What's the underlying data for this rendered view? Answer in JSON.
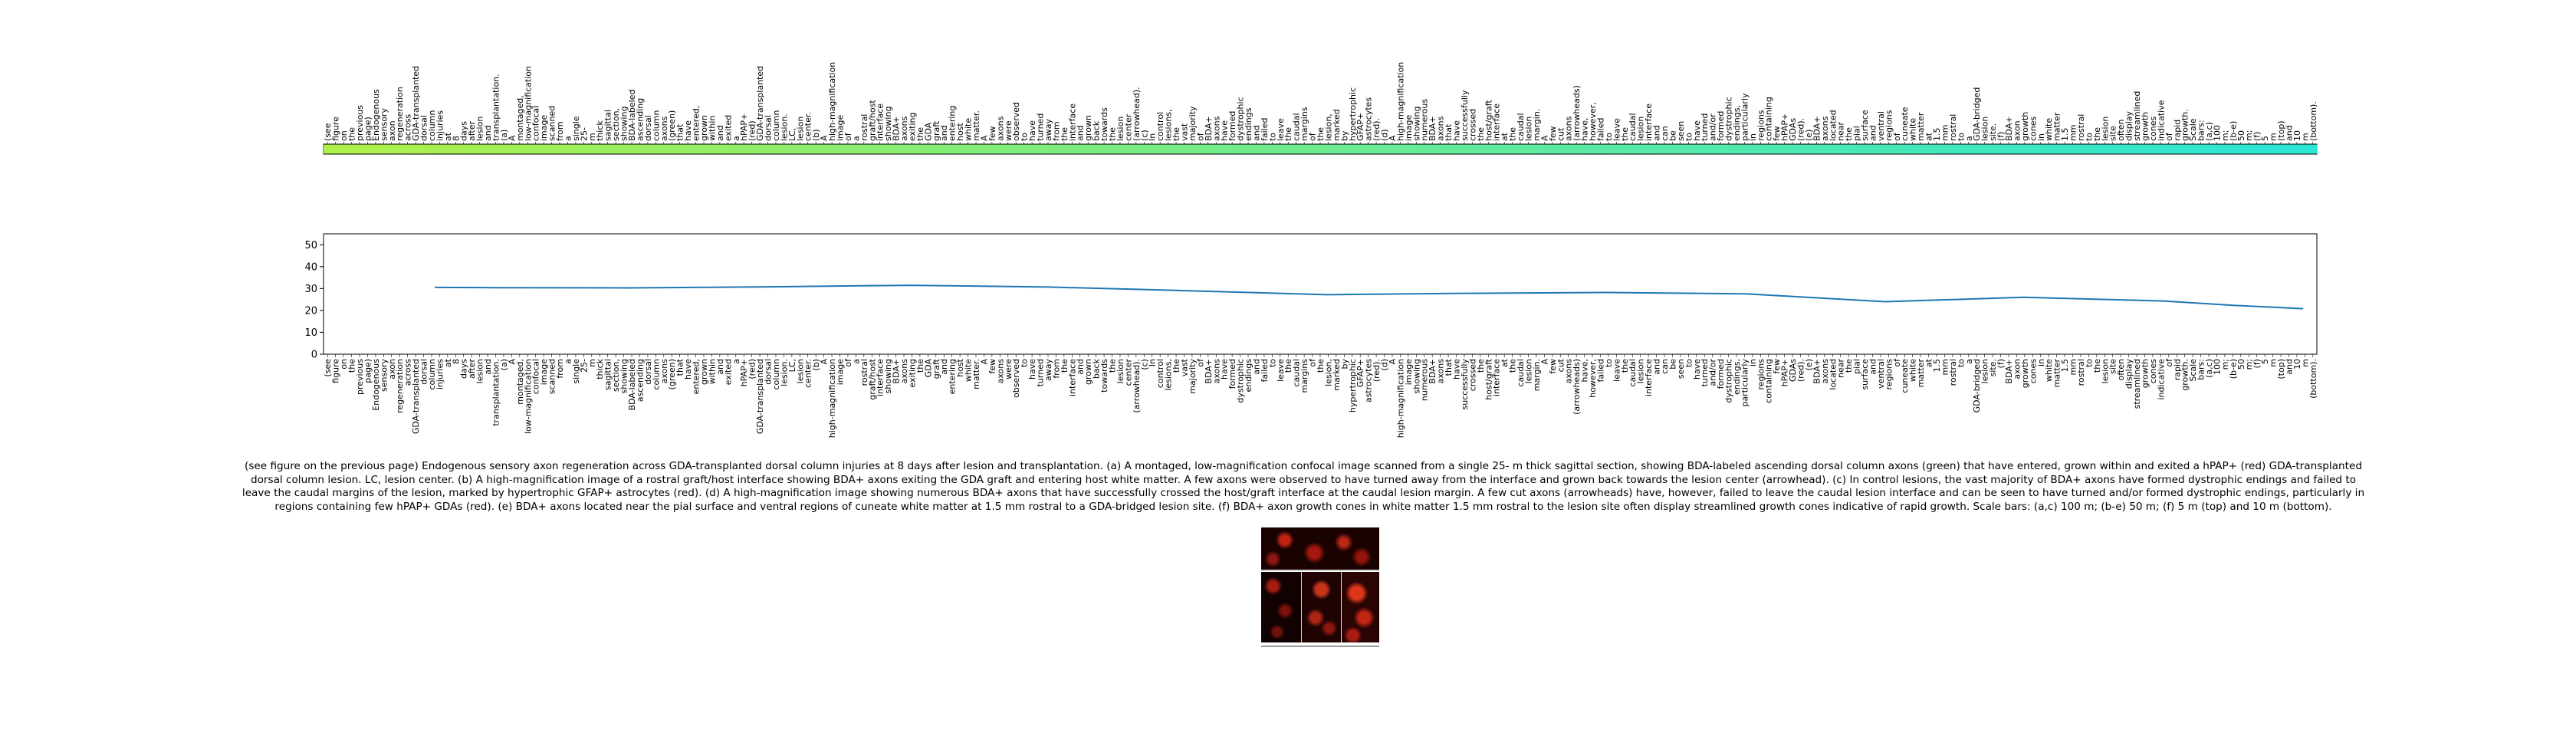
{
  "chart_data": [
    {
      "type": "heatmap",
      "xlabel": "",
      "ylabel": "",
      "colormap": "viridis",
      "color_range": [
        "#aef04a",
        "#2ae6d6"
      ],
      "gridlines": false,
      "legend": "none"
    },
    {
      "type": "line",
      "xlabel": "",
      "ylabel": "",
      "xlim": [
        0,
        143
      ],
      "ylim": [
        0,
        55
      ],
      "yticks": [
        0,
        10,
        20,
        30,
        40,
        50
      ],
      "grid": false,
      "legend": "none",
      "line_color": "#1f77b4",
      "x": [
        8,
        12,
        22,
        32,
        42,
        52,
        62,
        72,
        82,
        92,
        102,
        112,
        122,
        132,
        137,
        142
      ],
      "y": [
        30.5,
        30.4,
        30.3,
        30.8,
        31.5,
        30.7,
        29.0,
        27.2,
        27.8,
        28.2,
        27.6,
        24.0,
        26.0,
        24.3,
        22.3,
        20.8
      ]
    }
  ],
  "tokens": [
    "(see",
    "figure",
    "on",
    "the",
    "previous",
    "page)",
    "Endogenous",
    "sensory",
    "axon",
    "regeneration",
    "across",
    "GDA-transplanted",
    "dorsal",
    "column",
    "injuries",
    "at",
    "8",
    "days",
    "after",
    "lesion",
    "and",
    "transplantation.",
    "(a)",
    "A",
    "montaged,",
    "low-magnification",
    "confocal",
    "image",
    "scanned",
    "from",
    "a",
    "single",
    "25-",
    "m",
    "thick",
    "sagittal",
    "section,",
    "showing",
    "BDA-labeled",
    "ascending",
    "dorsal",
    "column",
    "axons",
    "(green)",
    "that",
    "have",
    "entered,",
    "grown",
    "within",
    "and",
    "exited",
    "a",
    "hPAP+",
    "(red)",
    "GDA-transplanted",
    "dorsal",
    "column",
    "lesion.",
    "LC,",
    "lesion",
    "center.",
    "(b)",
    "A",
    "high-magnification",
    "image",
    "of",
    "a",
    "rostral",
    "graft/host",
    "interface",
    "showing",
    "BDA+",
    "axons",
    "exiting",
    "the",
    "GDA",
    "graft",
    "and",
    "entering",
    "host",
    "white",
    "matter.",
    "A",
    "few",
    "axons",
    "were",
    "observed",
    "to",
    "have",
    "turned",
    "away",
    "from",
    "the",
    "interface",
    "and",
    "grown",
    "back",
    "towards",
    "the",
    "lesion",
    "center",
    "(arrowhead).",
    "(c)",
    "In",
    "control",
    "lesions,",
    "the",
    "vast",
    "majority",
    "of",
    "BDA+",
    "axons",
    "have",
    "formed",
    "dystrophic",
    "endings",
    "and",
    "failed",
    "to",
    "leave",
    "the",
    "caudal",
    "margins",
    "of",
    "the",
    "lesion,",
    "marked",
    "by",
    "hypertrophic",
    "GFAP+",
    "astrocytes",
    "(red).",
    "(d)",
    "A",
    "high-magnification",
    "image",
    "showing",
    "numerous",
    "BDA+",
    "axons",
    "that",
    "have",
    "successfully",
    "crossed",
    "the",
    "host/graft",
    "interface",
    "at",
    "the",
    "caudal",
    "lesion",
    "margin.",
    "A",
    "few",
    "cut",
    "axons",
    "(arrowheads)",
    "have,",
    "however,",
    "failed",
    "to",
    "leave",
    "the",
    "caudal",
    "lesion",
    "interface",
    "and",
    "can",
    "be",
    "seen",
    "to",
    "have",
    "turned",
    "and/or",
    "formed",
    "dystrophic",
    "endings,",
    "particularly",
    "in",
    "regions",
    "containing",
    "few",
    "hPAP+",
    "GDAs",
    "(red).",
    "(e)",
    "BDA+",
    "axons",
    "located",
    "near",
    "the",
    "pial",
    "surface",
    "and",
    "ventral",
    "regions",
    "of",
    "cuneate",
    "white",
    "matter",
    "at",
    "1.5",
    "mm",
    "rostral",
    "to",
    "a",
    "GDA-bridged",
    "lesion",
    "site.",
    "(f)",
    "BDA+",
    "axon",
    "growth",
    "cones",
    "in",
    "white",
    "matter",
    "1.5",
    "mm",
    "rostral",
    "to",
    "the",
    "lesion",
    "site",
    "often",
    "display",
    "streamlined",
    "growth",
    "cones",
    "indicative",
    "of",
    "rapid",
    "growth.",
    "Scale",
    "bars:",
    "(a,c)",
    "100",
    "m;",
    "(b-e)",
    "50",
    "m;",
    "(f)",
    "5",
    "m",
    "(top)",
    "and",
    "10",
    "m",
    "(bottom)."
  ],
  "caption": {
    "line1": "(see figure on the previous page) Endogenous sensory axon regeneration across GDA-transplanted dorsal column injuries at 8 days after lesion and transplantation. (a) A montaged, low-magnification confocal image scanned from a single 25- m thick sagittal section, showing BDA-labeled ascending dorsal column axons (green) that have entered, grown within and exited a hPAP+ (red) GDA-transplanted",
    "line2": "dorsal column lesion. LC, lesion center. (b) A high-magnification image of a rostral graft/host interface showing BDA+ axons exiting the GDA graft and entering host white matter. A few axons were observed to have turned away from the interface and grown back towards the lesion center (arrowhead). (c) In control lesions, the vast majority of BDA+ axons have formed dystrophic endings and failed to",
    "line3": "leave the caudal margins of the lesion, marked by hypertrophic GFAP+ astrocytes (red). (d) A high-magnification image showing numerous BDA+ axons that have successfully crossed the host/graft interface at the caudal lesion margin. A few cut axons (arrowheads) have, however, failed to leave the caudal lesion interface and can be seen to have turned and/or formed dystrophic endings, particularly in",
    "line4": "regions containing few hPAP+ GDAs (red). (e) BDA+ axons located near the pial surface and ventral regions of cuneate white matter at 1.5 mm rostral to a GDA-bridged lesion site. (f) BDA+ axon growth cones in white matter 1.5 mm rostral to the lesion site often display streamlined growth cones indicative of rapid growth. Scale bars: (a,c) 100 m; (b-e) 50 m; (f) 5 m (top) and 10 m (bottom)."
  }
}
